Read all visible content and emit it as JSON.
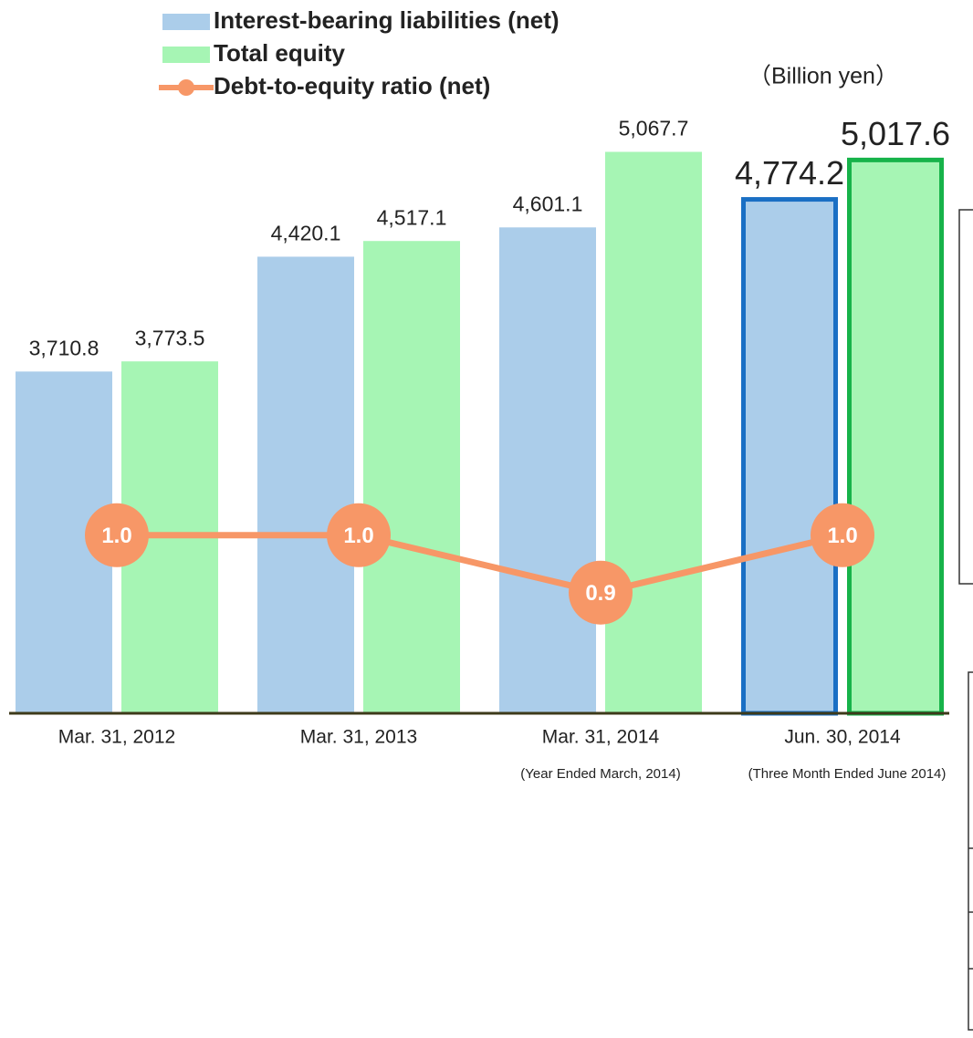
{
  "chart_data": {
    "type": "bar_line",
    "unit_label": "（Billion yen）",
    "categories": [
      "Mar. 31, 2012",
      "Mar. 31, 2013",
      "Mar. 31, 2014",
      "Jun. 30, 2014"
    ],
    "sublabels": [
      null,
      null,
      "(Year Ended March, 2014)",
      "(Three Month Ended June 2014)"
    ],
    "series": [
      {
        "name": "Interest-bearing liabilities (net)",
        "type": "bar",
        "color": "#abcdea",
        "highlight_color": "#1a6fc4",
        "values": [
          3710.8,
          4420.1,
          4601.1,
          4774.2
        ],
        "value_labels": [
          "3,710.8",
          "4,420.1",
          "4,601.1",
          "4,774.2"
        ]
      },
      {
        "name": "Total equity",
        "type": "bar",
        "color": "#a6f5b4",
        "highlight_color": "#17b34a",
        "values": [
          3773.5,
          4517.1,
          5067.7,
          5017.6
        ],
        "value_labels": [
          "3,773.5",
          "4,517.1",
          "5,067.7",
          "5,017.6"
        ]
      },
      {
        "name": "Debt-to-equity ratio (net)",
        "type": "line",
        "axis": "y2",
        "color": "#f79767",
        "values": [
          1.0,
          1.0,
          0.9,
          1.0
        ],
        "value_labels": [
          "1.0",
          "1.0",
          "0.9",
          "1.0"
        ]
      }
    ],
    "highlight_index": 3,
    "ylim": [
      1600,
      6000
    ],
    "y2lim": [
      0.69,
      1.93
    ]
  }
}
